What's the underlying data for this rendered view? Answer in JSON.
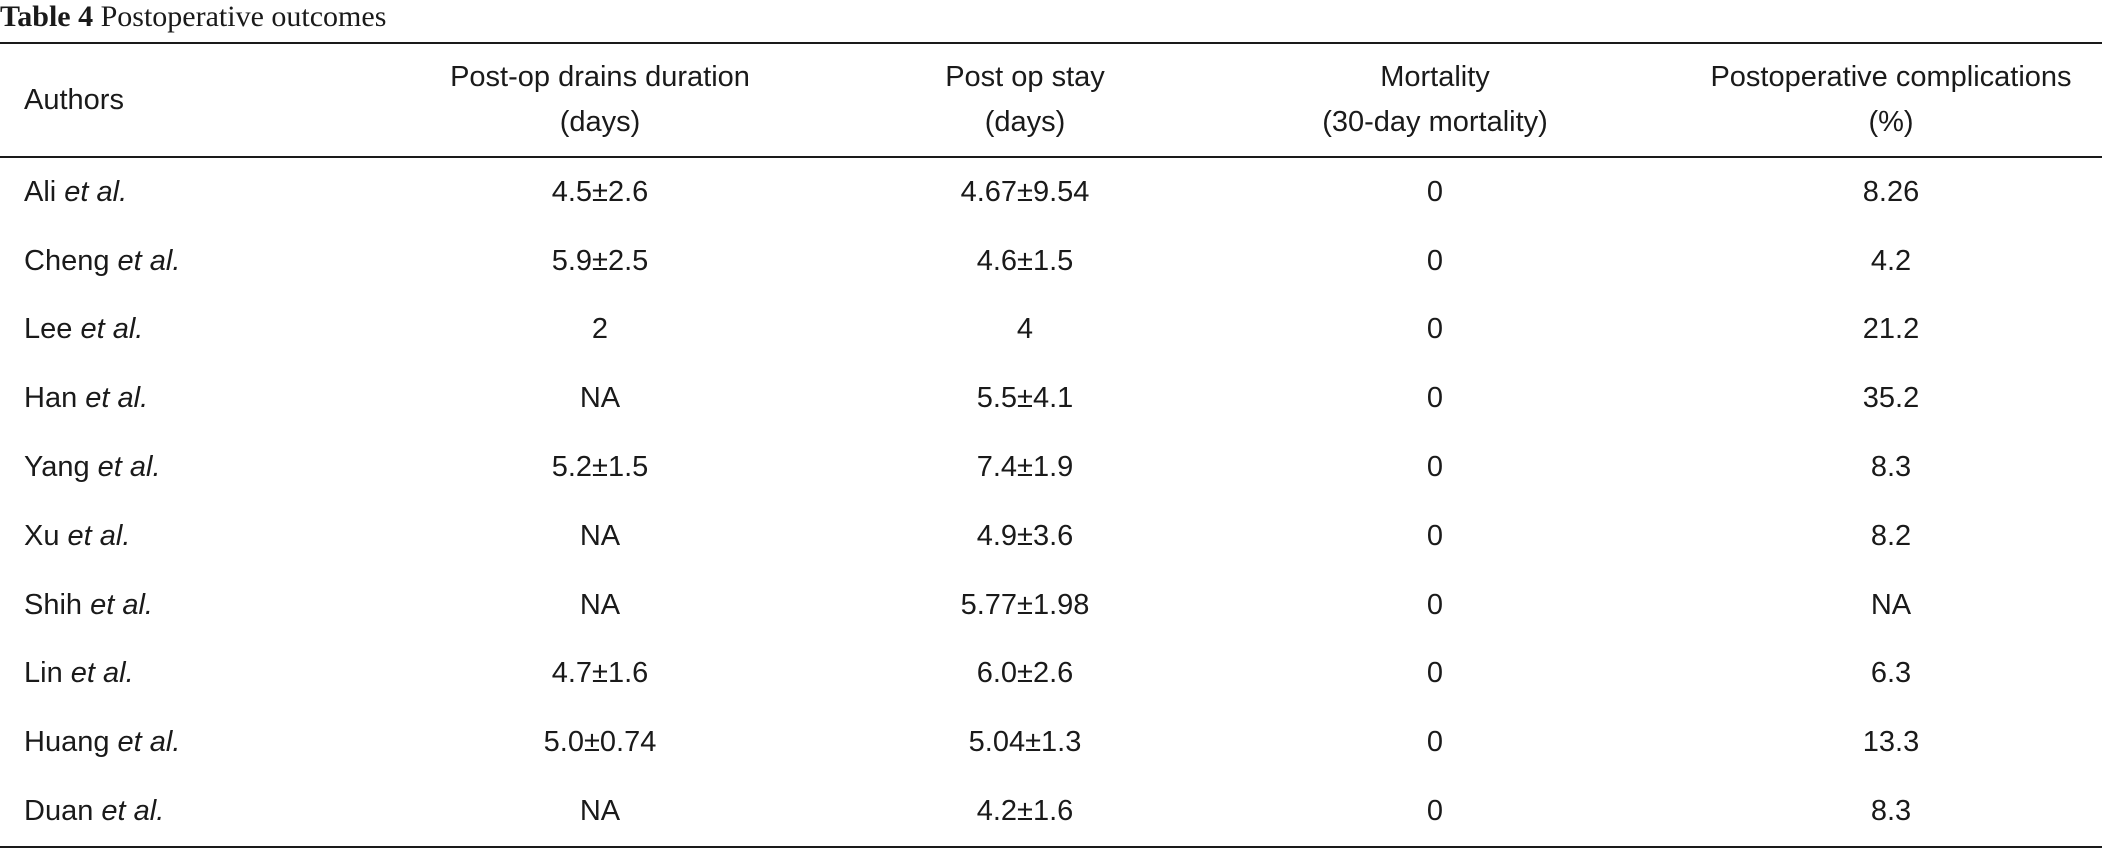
{
  "caption": {
    "label": "Table 4",
    "title": "Postoperative outcomes"
  },
  "table": {
    "headers": [
      {
        "line1": "Authors",
        "line2": ""
      },
      {
        "line1": "Post-op drains duration",
        "line2": "(days)"
      },
      {
        "line1": "Post op stay",
        "line2": "(days)"
      },
      {
        "line1": "Mortality",
        "line2": "(30-day mortality)"
      },
      {
        "line1": "Postoperative complications",
        "line2": "(%)"
      }
    ],
    "rows": [
      {
        "author": "Ali",
        "suffix": "et al.",
        "drains": "4.5±2.6",
        "stay": "4.67±9.54",
        "mortality": "0",
        "complications": "8.26"
      },
      {
        "author": "Cheng",
        "suffix": "et al.",
        "drains": "5.9±2.5",
        "stay": "4.6±1.5",
        "mortality": "0",
        "complications": "4.2"
      },
      {
        "author": "Lee",
        "suffix": "et al.",
        "drains": "2",
        "stay": "4",
        "mortality": "0",
        "complications": "21.2"
      },
      {
        "author": "Han",
        "suffix": "et al.",
        "drains": "NA",
        "stay": "5.5±4.1",
        "mortality": "0",
        "complications": "35.2"
      },
      {
        "author": "Yang",
        "suffix": "et al.",
        "drains": "5.2±1.5",
        "stay": "7.4±1.9",
        "mortality": "0",
        "complications": "8.3"
      },
      {
        "author": "Xu",
        "suffix": "et al.",
        "drains": "NA",
        "stay": "4.9±3.6",
        "mortality": "0",
        "complications": "8.2"
      },
      {
        "author": "Shih",
        "suffix": "et al.",
        "drains": "NA",
        "stay": "5.77±1.98",
        "mortality": "0",
        "complications": "NA"
      },
      {
        "author": "Lin",
        "suffix": "et al.",
        "drains": "4.7±1.6",
        "stay": "6.0±2.6",
        "mortality": "0",
        "complications": "6.3"
      },
      {
        "author": "Huang",
        "suffix": "et al.",
        "drains": "5.0±0.74",
        "stay": "5.04±1.3",
        "mortality": "0",
        "complications": "13.3"
      },
      {
        "author": "Duan",
        "suffix": "et al.",
        "drains": "NA",
        "stay": "4.2±1.6",
        "mortality": "0",
        "complications": "8.3"
      }
    ]
  }
}
